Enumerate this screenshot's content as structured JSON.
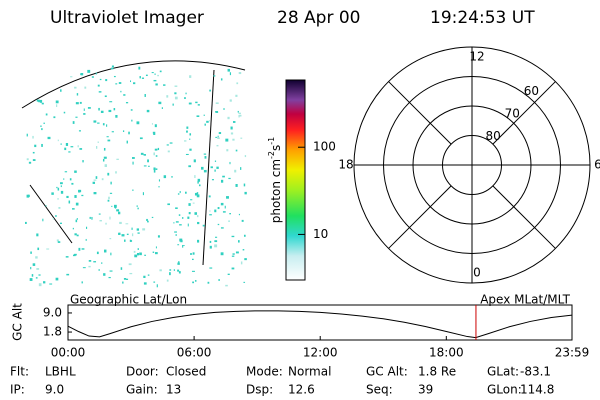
{
  "header": {
    "instrument": "Ultraviolet Imager",
    "date": "28 Apr 00",
    "time": "19:24:53 UT"
  },
  "colorbar": {
    "unit": "photon cm",
    "exp1": "-2",
    "unit2": "s",
    "exp2": "-1",
    "scale": "log",
    "lim": [
      3,
      590
    ],
    "ticks": [
      10,
      100
    ]
  },
  "polar": {
    "lim": [
      90,
      50
    ],
    "rings": [
      60,
      70,
      80
    ],
    "mlt_ticks": [
      12,
      18,
      6,
      0
    ]
  },
  "chart_data": {
    "type": "line",
    "ylabel": "GC Alt",
    "left_label": "Geographic Lat/Lon",
    "right_label": "Apex MLat/MLT",
    "x": [
      0,
      0.5,
      1,
      1.5,
      2,
      3,
      4,
      5,
      6,
      7,
      8,
      9,
      10,
      11,
      12,
      13,
      14,
      15,
      16,
      17,
      18,
      19,
      19.4,
      20,
      21,
      22,
      23,
      23.98
    ],
    "values": [
      4.0,
      2.0,
      0.3,
      0.0,
      1.2,
      3.8,
      5.8,
      7.3,
      8.4,
      9.2,
      9.6,
      9.8,
      9.8,
      9.6,
      9.2,
      8.6,
      7.8,
      6.8,
      5.5,
      3.9,
      2.0,
      0.1,
      -0.3,
      1.2,
      3.8,
      5.8,
      7.3,
      8.2
    ],
    "current_time": 19.41,
    "color": "#000000",
    "marker_color": "#cc0000",
    "xlim": [
      0,
      23.98
    ],
    "xticks": [
      {
        "value": 0,
        "label": "00:00"
      },
      {
        "value": 6,
        "label": "06:00"
      },
      {
        "value": 12,
        "label": "12:00"
      },
      {
        "value": 18,
        "label": "18:00"
      },
      {
        "value": 23.98,
        "label": "23:59"
      }
    ],
    "ylim": [
      -1.2,
      12
    ],
    "yticks": [
      {
        "value": 1.8,
        "label": "1.8"
      },
      {
        "value": 9,
        "label": "9.0"
      }
    ]
  },
  "footer": {
    "rows": [
      [
        [
          "Flt:",
          "LBHL"
        ],
        [
          "Door:",
          "Closed"
        ],
        [
          "Mode:",
          "Normal"
        ],
        [
          "GC Alt:",
          "1.8 Re"
        ],
        [
          "GLat:",
          "-83.1"
        ]
      ],
      [
        [
          "IP:",
          "9.0"
        ],
        [
          "Gain:",
          "13"
        ],
        [
          "Dsp:",
          "12.6"
        ],
        [
          "Seq:",
          "39"
        ],
        [
          "GLon:",
          "114.8"
        ]
      ]
    ]
  }
}
